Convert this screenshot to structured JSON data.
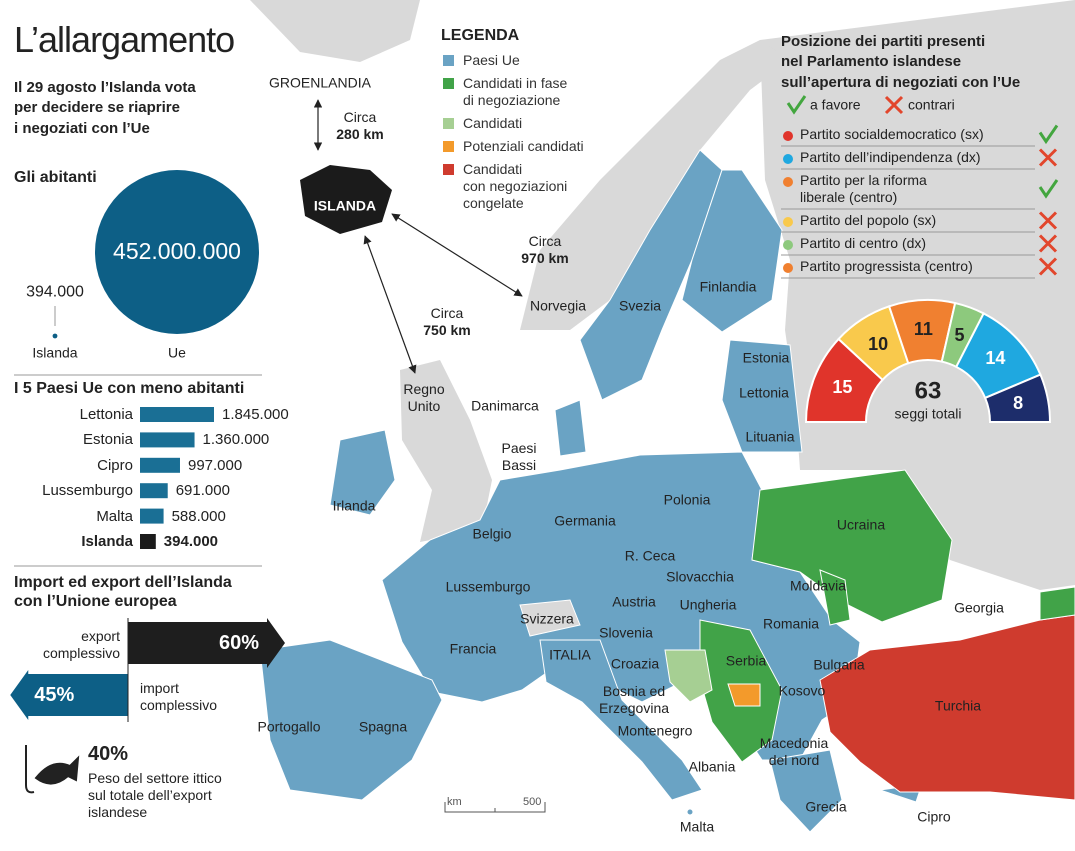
{
  "title": "L’allargamento",
  "intro": "Il 29 agosto l’Islanda vota\nper decidere se riaprire\ni negoziati con l’Ue",
  "legend": {
    "title": "LEGENDA",
    "items": [
      {
        "label": "Paesi Ue",
        "color": "#6aa3c4"
      },
      {
        "label": "Candidati in fase\ndi negoziazione",
        "color": "#41a348"
      },
      {
        "label": "Candidati",
        "color": "#a6cf93"
      },
      {
        "label": "Potenziali candidati",
        "color": "#f39a2b"
      },
      {
        "label": "Candidati\ncon negoziazioni\ncongelate",
        "color": "#cf3b2e"
      }
    ]
  },
  "chart_data": [
    {
      "type": "bubble",
      "title": "Gli abitanti",
      "categories": [
        "Islanda",
        "Ue"
      ],
      "values": [
        394000,
        452000000
      ],
      "value_labels": [
        "394.000",
        "452.000.000"
      ],
      "color": "#0d5f86"
    },
    {
      "type": "bar",
      "title": "I 5 Paesi Ue con meno abitanti",
      "categories": [
        "Lettonia",
        "Estonia",
        "Cipro",
        "Lussemburgo",
        "Malta",
        "Islanda"
      ],
      "values": [
        1845000,
        1360000,
        997000,
        691000,
        588000,
        394000
      ],
      "value_labels": [
        "1.845.000",
        "1.360.000",
        "997.000",
        "691.000",
        "588.000",
        "394.000"
      ],
      "colors": [
        "#1a6f95",
        "#1a6f95",
        "#1a6f95",
        "#1a6f95",
        "#1a6f95",
        "#1b1b1b"
      ]
    },
    {
      "type": "arrow",
      "title": "Import ed export dell’Islanda\ncon l’Unione europea",
      "categories": [
        "export\ncomplessivo",
        "import\ncomplessivo"
      ],
      "values": [
        60,
        45
      ],
      "value_labels": [
        "60%",
        "45%"
      ],
      "colors": [
        "#1e1e1e",
        "#0d5f86"
      ]
    },
    {
      "type": "semicircle",
      "title": "Posizione dei partiti presenti\nnel Parlamento islandese\nsull’apertura di negoziati con l’Ue",
      "favor_label": "a favore",
      "against_label": "contrari",
      "categories": [
        "Partito socialdemocratico (sx)",
        "Partito dell’indipendenza (dx)",
        "Partito per la riforma\nliberale (centro)",
        "Partito del popolo (sx)",
        "Partito di centro (dx)",
        "Partito progressista (centro)"
      ],
      "values": [
        15,
        14,
        11,
        10,
        5,
        8
      ],
      "colors": [
        "#e0342b",
        "#1fa8e0",
        "#f08030",
        "#f9c94c",
        "#8dc97d",
        "#f08030"
      ],
      "arc_colors": [
        "#e0342b",
        "#1fa8e0",
        "#f08030",
        "#f9c94c",
        "#8dc97d",
        "#1d2d6b"
      ],
      "in_favor": [
        true,
        false,
        true,
        false,
        false,
        false
      ],
      "total": 63,
      "total_label": "seggi totali"
    }
  ],
  "fish": {
    "value": "40%",
    "text": "Peso del settore ittico\nsul totale dell’export\nislandese"
  },
  "map": {
    "labels": [
      "GROENLANDIA",
      "ISLANDA",
      "Norvegia",
      "Svezia",
      "Finlandia",
      "Estonia",
      "Lettonia",
      "Lituania",
      "Danimarca",
      "Regno\nUnito",
      "Irlanda",
      "Paesi\nBassi",
      "Belgio",
      "Lussemburgo",
      "Germania",
      "Polonia",
      "R. Ceca",
      "Slovacchia",
      "Austria",
      "Ungheria",
      "Svizzera",
      "Slovenia",
      "Francia",
      "ITALIA",
      "Croazia",
      "Bosnia ed\nErzegovina",
      "Serbia",
      "Montenegro",
      "Kosovo",
      "Albania",
      "Macedonia\ndel nord",
      "Romania",
      "Moldavia",
      "Ucraina",
      "Bulgaria",
      "Georgia",
      "Turchia",
      "Grecia",
      "Cipro",
      "Malta",
      "Portogallo",
      "Spagna"
    ],
    "distances": [
      {
        "label": "Circa",
        "value": "280 km"
      },
      {
        "label": "Circa",
        "value": "970 km"
      },
      {
        "label": "Circa",
        "value": "750 km"
      }
    ],
    "scale": {
      "unit": "km",
      "value": "500"
    }
  }
}
